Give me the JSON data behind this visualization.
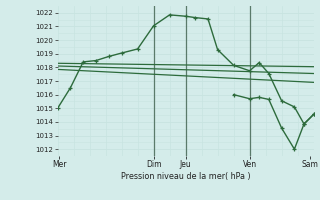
{
  "background_color": "#d4ecea",
  "grid_color_major": "#b8d8d4",
  "grid_color_minor": "#c8e4e0",
  "line_color": "#2d6b3c",
  "xlabel": "Pression niveau de la mer( hPa )",
  "ylim": [
    1011.5,
    1022.5
  ],
  "xlim": [
    0,
    8.0
  ],
  "yticks": [
    1012,
    1013,
    1014,
    1015,
    1016,
    1017,
    1018,
    1019,
    1020,
    1021,
    1022
  ],
  "xtick_labels": [
    "Mer",
    "Dim",
    "Jeu",
    "Ven",
    "Sam"
  ],
  "xtick_positions": [
    0.05,
    3.0,
    4.0,
    6.0,
    7.9
  ],
  "vline_positions": [
    3.0,
    4.0,
    6.0
  ],
  "main_line": {
    "x": [
      0.0,
      0.4,
      0.8,
      1.2,
      1.6,
      2.0,
      2.5,
      3.0,
      3.5,
      4.0,
      4.3,
      4.7,
      5.0,
      5.5,
      6.0,
      6.3,
      6.6,
      7.0,
      7.4,
      7.7,
      8.0
    ],
    "y": [
      1015.0,
      1016.5,
      1018.4,
      1018.5,
      1018.8,
      1019.05,
      1019.35,
      1021.05,
      1021.85,
      1021.75,
      1021.65,
      1021.55,
      1019.3,
      1018.15,
      1017.75,
      1018.35,
      1017.55,
      1015.55,
      1015.1,
      1013.85,
      1014.55
    ]
  },
  "ref_line1": {
    "x": [
      0.0,
      8.0
    ],
    "y": [
      1018.3,
      1018.05
    ]
  },
  "ref_line2": {
    "x": [
      0.0,
      8.0
    ],
    "y": [
      1018.1,
      1017.55
    ]
  },
  "ref_line3": {
    "x": [
      0.0,
      8.0
    ],
    "y": [
      1017.85,
      1016.9
    ]
  },
  "drop_line": {
    "x": [
      5.5,
      6.0,
      6.3,
      6.6,
      7.0,
      7.4,
      7.7,
      8.0
    ],
    "y": [
      1016.0,
      1015.7,
      1015.8,
      1015.65,
      1013.55,
      1012.0,
      1013.85,
      1014.55
    ]
  },
  "figsize": [
    3.2,
    2.0
  ],
  "dpi": 100
}
